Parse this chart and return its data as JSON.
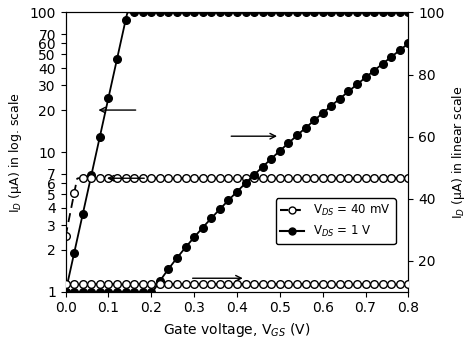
{
  "title": "",
  "xlabel": "Gate voltage, V$_{GS}$ (V)",
  "ylabel_left": "I$_D$ (μA) in log. scale",
  "ylabel_right": "I$_D$ (μA) in linear scale",
  "xlim": [
    0.0,
    0.8
  ],
  "ylim_log": [
    1.0,
    100.0
  ],
  "ylim_lin": [
    10.0,
    100.0
  ],
  "yticks_log": [
    1,
    2,
    3,
    4,
    5,
    6,
    7,
    10,
    20,
    30,
    40,
    50,
    60,
    70,
    100
  ],
  "yticks_lin": [
    20,
    40,
    60,
    80,
    100
  ],
  "xticks": [
    0.0,
    0.1,
    0.2,
    0.3,
    0.4,
    0.5,
    0.6,
    0.7,
    0.8
  ],
  "legend_labels": [
    "V$_{DS}$ = 40 mV",
    "V$_{DS}$ = 1 V"
  ],
  "color_filled": "#000000",
  "color_open": "#000000",
  "background": "#ffffff",
  "figsize": [
    4.74,
    3.46
  ],
  "dpi": 100,
  "Vth_1V": 0.0,
  "SS_1V": 0.072,
  "I0_1V": 1.0,
  "Ion_1V": 100.0,
  "Vth_40mV": -0.15,
  "SS_40mV": 0.065,
  "I0_40mV": 2.5,
  "Isat_40mV_log": 6.5,
  "Isat_40mV_lin": 12.5,
  "Ion_lin_1V": 90.0,
  "Vth_lin_1V": 0.17
}
